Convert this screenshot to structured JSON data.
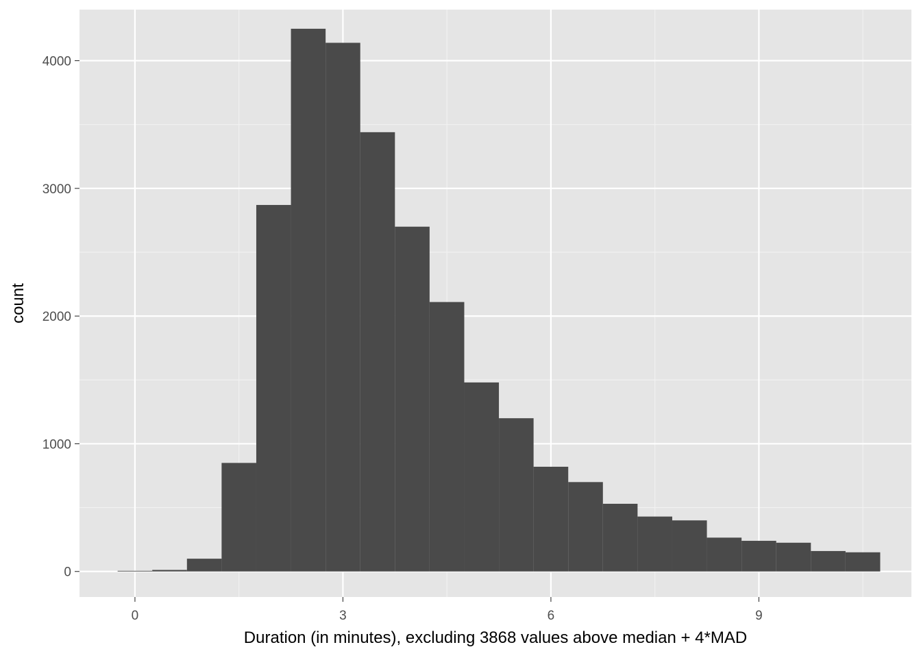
{
  "chart_data": {
    "type": "bar",
    "subtype": "histogram",
    "title": "",
    "xlabel": "Duration (in minutes), excluding 3868 values above median + 4*MAD",
    "ylabel": "count",
    "xlim": [
      -0.8,
      11.2
    ],
    "ylim": [
      -200,
      4400
    ],
    "x_ticks": [
      0,
      3,
      6,
      9
    ],
    "x_tick_labels": [
      "0",
      "3",
      "6",
      "9"
    ],
    "y_ticks": [
      0,
      1000,
      2000,
      3000,
      4000
    ],
    "y_tick_labels": [
      "0",
      "1000",
      "2000",
      "3000",
      "4000"
    ],
    "x_minor_ticks": [
      1.5,
      4.5,
      7.5,
      10.5
    ],
    "y_minor_ticks": [
      500,
      1500,
      2500,
      3500
    ],
    "bin_width": 0.5,
    "bins": [
      {
        "x0": -0.25,
        "x1": 0.25,
        "count": 5
      },
      {
        "x0": 0.25,
        "x1": 0.75,
        "count": 12
      },
      {
        "x0": 0.75,
        "x1": 1.25,
        "count": 100
      },
      {
        "x0": 1.25,
        "x1": 1.75,
        "count": 850
      },
      {
        "x0": 1.75,
        "x1": 2.25,
        "count": 2870
      },
      {
        "x0": 2.25,
        "x1": 2.75,
        "count": 4250
      },
      {
        "x0": 2.75,
        "x1": 3.25,
        "count": 4140
      },
      {
        "x0": 3.25,
        "x1": 3.75,
        "count": 3440
      },
      {
        "x0": 3.75,
        "x1": 4.25,
        "count": 2700
      },
      {
        "x0": 4.25,
        "x1": 4.75,
        "count": 2110
      },
      {
        "x0": 4.75,
        "x1": 5.25,
        "count": 1480
      },
      {
        "x0": 5.25,
        "x1": 5.75,
        "count": 1200
      },
      {
        "x0": 5.75,
        "x1": 6.25,
        "count": 820
      },
      {
        "x0": 6.25,
        "x1": 6.75,
        "count": 700
      },
      {
        "x0": 6.75,
        "x1": 7.25,
        "count": 530
      },
      {
        "x0": 7.25,
        "x1": 7.75,
        "count": 430
      },
      {
        "x0": 7.75,
        "x1": 8.25,
        "count": 400
      },
      {
        "x0": 8.25,
        "x1": 8.75,
        "count": 265
      },
      {
        "x0": 8.75,
        "x1": 9.25,
        "count": 240
      },
      {
        "x0": 9.25,
        "x1": 9.75,
        "count": 225
      },
      {
        "x0": 9.75,
        "x1": 10.25,
        "count": 160
      },
      {
        "x0": 10.25,
        "x1": 10.75,
        "count": 150
      }
    ],
    "grid": true,
    "colors": {
      "panel_background": "#e5e5e5",
      "grid_major": "#ffffff",
      "grid_minor": "#f2f2f2",
      "bar_fill": "#4a4a4a",
      "tick_text": "#4d4d4d",
      "tick_mark": "#333333"
    }
  }
}
